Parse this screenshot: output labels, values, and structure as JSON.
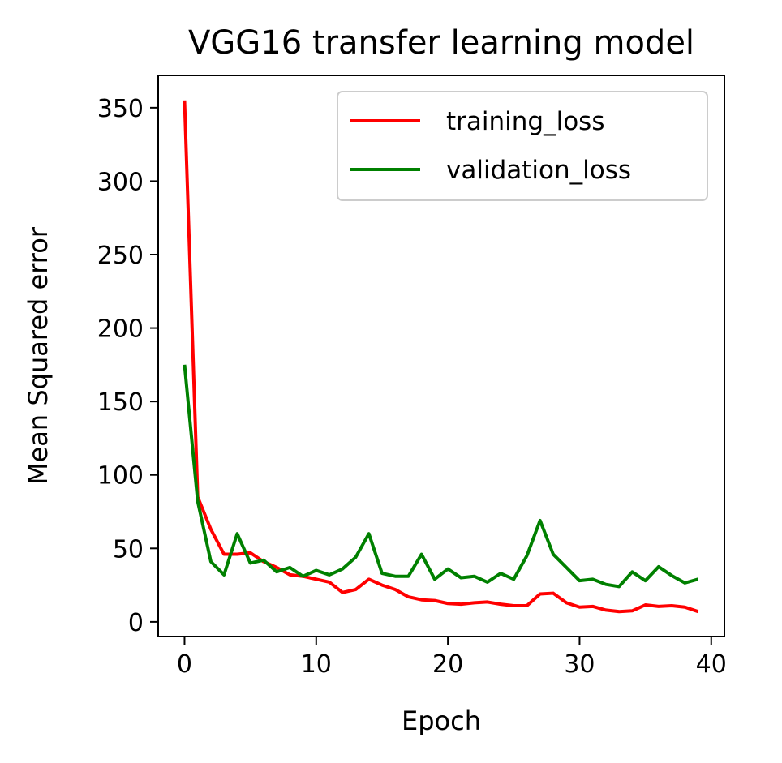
{
  "chart_data": {
    "type": "line",
    "title": "VGG16 transfer learning model",
    "xlabel": "Epoch",
    "ylabel": "Mean Squared error",
    "xlim": [
      -2,
      41
    ],
    "ylim": [
      -10,
      372
    ],
    "xticks": [
      0,
      10,
      20,
      30,
      40
    ],
    "yticks": [
      0,
      50,
      100,
      150,
      200,
      250,
      300,
      350
    ],
    "grid": false,
    "legend_position": "top-right",
    "x": [
      0,
      1,
      2,
      3,
      4,
      5,
      6,
      7,
      8,
      9,
      10,
      11,
      12,
      13,
      14,
      15,
      16,
      17,
      18,
      19,
      20,
      21,
      22,
      23,
      24,
      25,
      26,
      27,
      28,
      29,
      30,
      31,
      32,
      33,
      34,
      35,
      36,
      37,
      38,
      39
    ],
    "series": [
      {
        "name": "training_loss",
        "color": "#ff0000",
        "values": [
          355,
          85,
          63,
          46,
          46,
          47,
          41,
          37,
          32,
          31,
          29,
          27,
          20,
          22,
          29,
          25,
          22,
          17,
          15,
          14.5,
          12.5,
          12,
          13,
          13.5,
          12,
          11,
          11,
          19,
          19.5,
          13,
          10,
          10.5,
          8,
          7,
          7.5,
          11.5,
          10.5,
          11,
          10,
          7
        ]
      },
      {
        "name": "validation_loss",
        "color": "#008000",
        "values": [
          175,
          82,
          41,
          32,
          60,
          40,
          42,
          34,
          37,
          31,
          35,
          32,
          36,
          44,
          60,
          33,
          31,
          31,
          46,
          29,
          36,
          30,
          31,
          27,
          33,
          29,
          45,
          69,
          46,
          37,
          28,
          29,
          25.5,
          24,
          34,
          28,
          37.5,
          31.5,
          26.5,
          29
        ]
      }
    ]
  }
}
